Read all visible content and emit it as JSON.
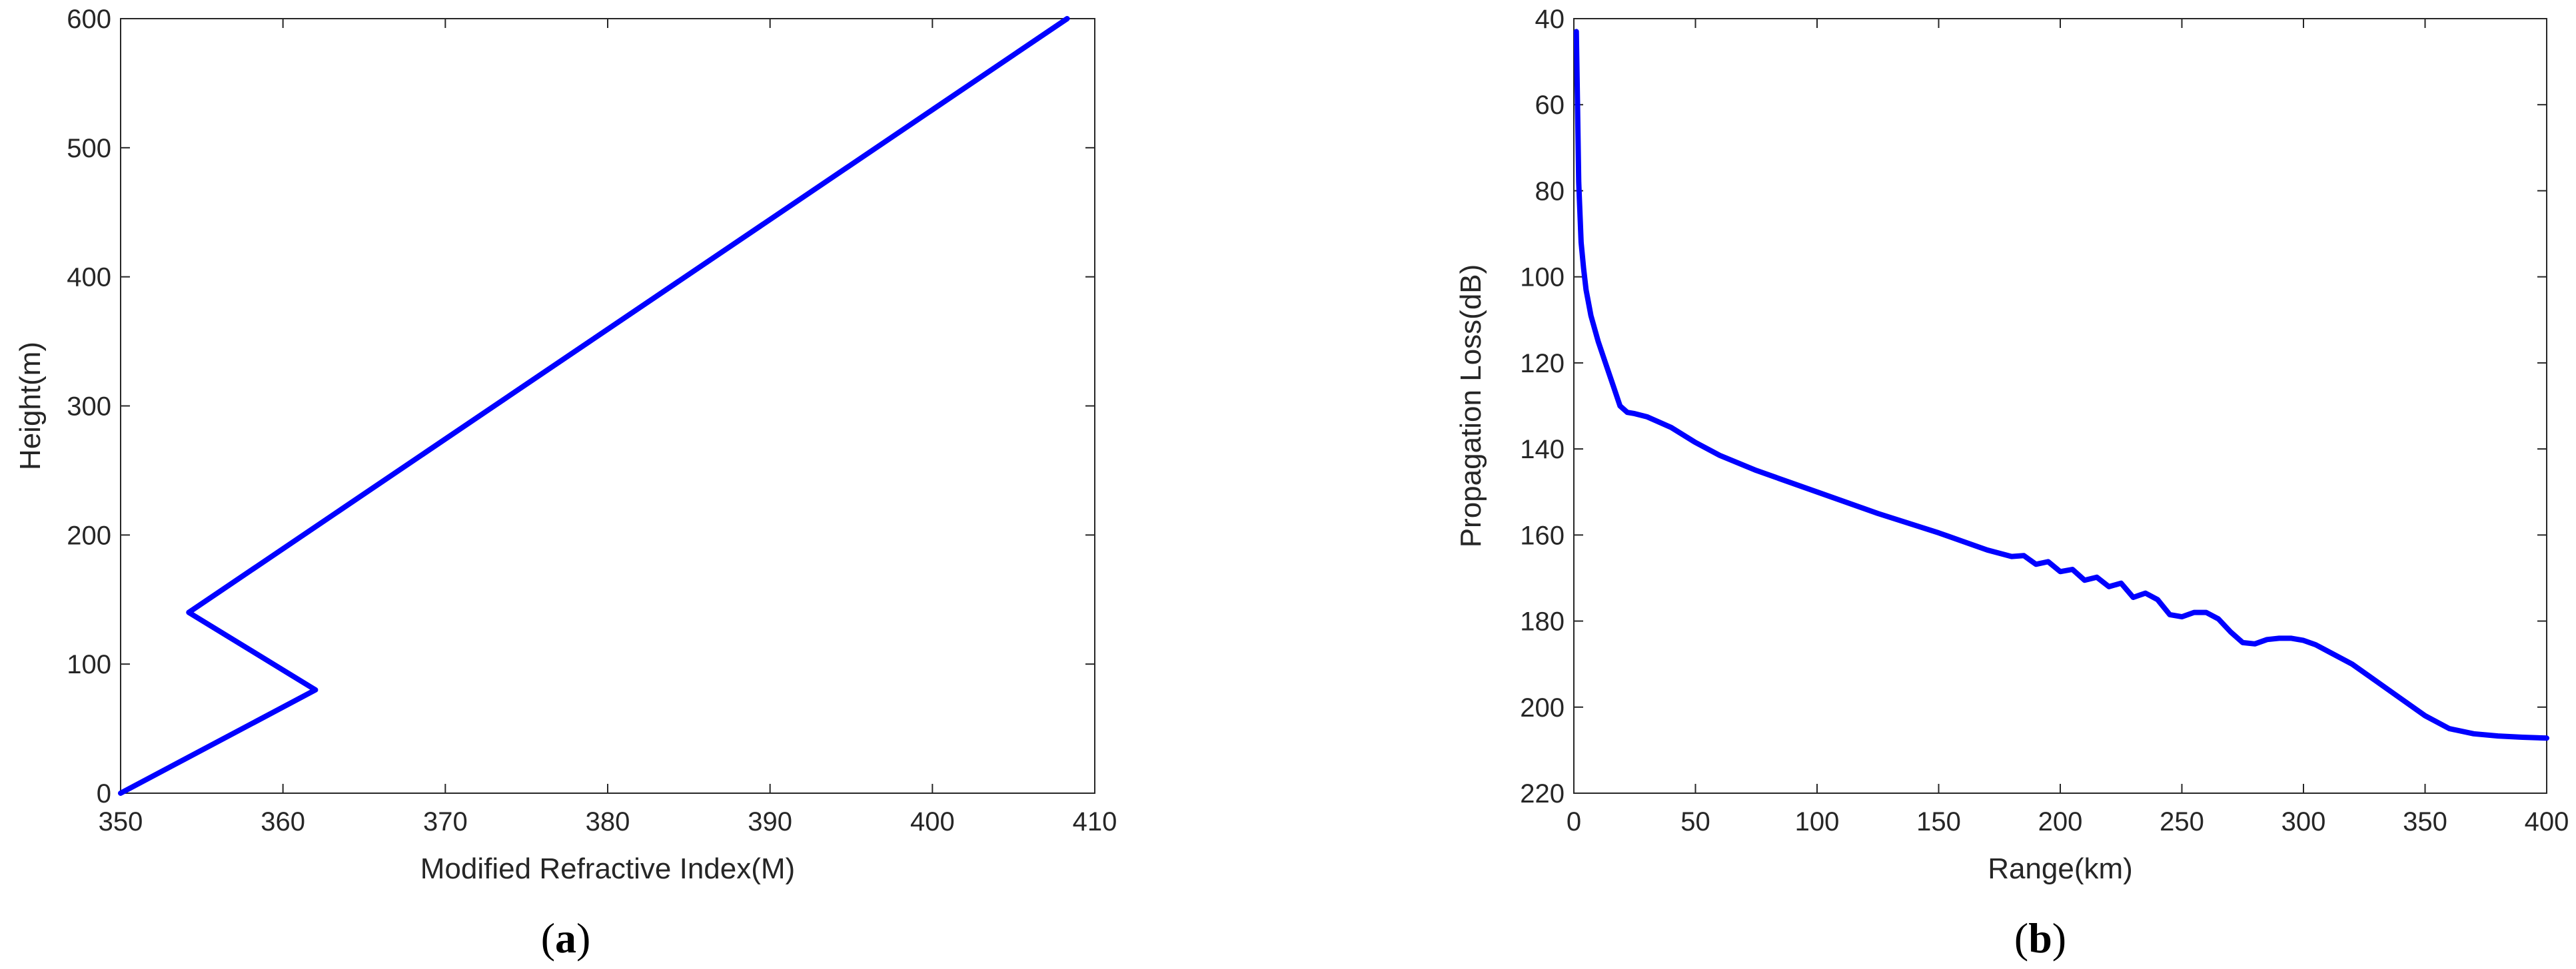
{
  "colors": {
    "line": "#0000ff",
    "axis": "#262626"
  },
  "panels": [
    {
      "label_open": "(",
      "label_letter": "a",
      "label_close": ")"
    },
    {
      "label_open": "(",
      "label_letter": "b",
      "label_close": ")"
    }
  ],
  "chart_data": [
    {
      "type": "line",
      "title": "",
      "xlabel": "Modified Refractive Index(M)",
      "ylabel": "Height(m)",
      "xlim": [
        350,
        410
      ],
      "ylim": [
        0,
        600
      ],
      "y_reversed": false,
      "grid": false,
      "xticks": [
        350,
        360,
        370,
        380,
        390,
        400,
        410
      ],
      "yticks": [
        0,
        100,
        200,
        300,
        400,
        500,
        600
      ],
      "series": [
        {
          "x": [
            350,
            362,
            354.2,
            408.3
          ],
          "y": [
            0,
            80,
            140,
            600
          ]
        }
      ]
    },
    {
      "type": "line",
      "title": "",
      "xlabel": "Range(km)",
      "ylabel": "Propagation Loss(dB)",
      "xlim": [
        0,
        400
      ],
      "ylim": [
        40,
        220
      ],
      "y_reversed": true,
      "grid": false,
      "xticks": [
        0,
        50,
        100,
        150,
        200,
        250,
        300,
        350,
        400
      ],
      "yticks": [
        40,
        60,
        80,
        100,
        120,
        140,
        160,
        180,
        200,
        220
      ],
      "series": [
        {
          "x": [
            1,
            1.5,
            2,
            3,
            4,
            5,
            7,
            10,
            13,
            16,
            19,
            22,
            25,
            30,
            40,
            50,
            60,
            75,
            100,
            125,
            150,
            160,
            170,
            180,
            185,
            190,
            195,
            200,
            205,
            210,
            215,
            220,
            225,
            230,
            235,
            240,
            245,
            250,
            255,
            260,
            265,
            270,
            275,
            280,
            285,
            290,
            295,
            300,
            305,
            310,
            320,
            330,
            340,
            350,
            360,
            370,
            380,
            390,
            400
          ],
          "y": [
            43,
            60,
            78,
            92,
            98,
            103,
            109,
            115,
            120,
            125,
            130,
            131.5,
            131.8,
            132.5,
            135,
            138.5,
            141.5,
            145,
            150,
            155,
            159.5,
            161.5,
            163.5,
            165,
            164.8,
            166.8,
            166.2,
            168.5,
            168,
            170.5,
            169.8,
            172,
            171.2,
            174.5,
            173.5,
            175,
            178.5,
            179,
            178,
            178,
            179.5,
            182.5,
            185,
            185.3,
            184.3,
            184,
            184,
            184.5,
            185.5,
            187,
            190,
            194,
            198,
            202,
            205,
            206.2,
            206.7,
            207,
            207.2
          ]
        }
      ]
    }
  ]
}
